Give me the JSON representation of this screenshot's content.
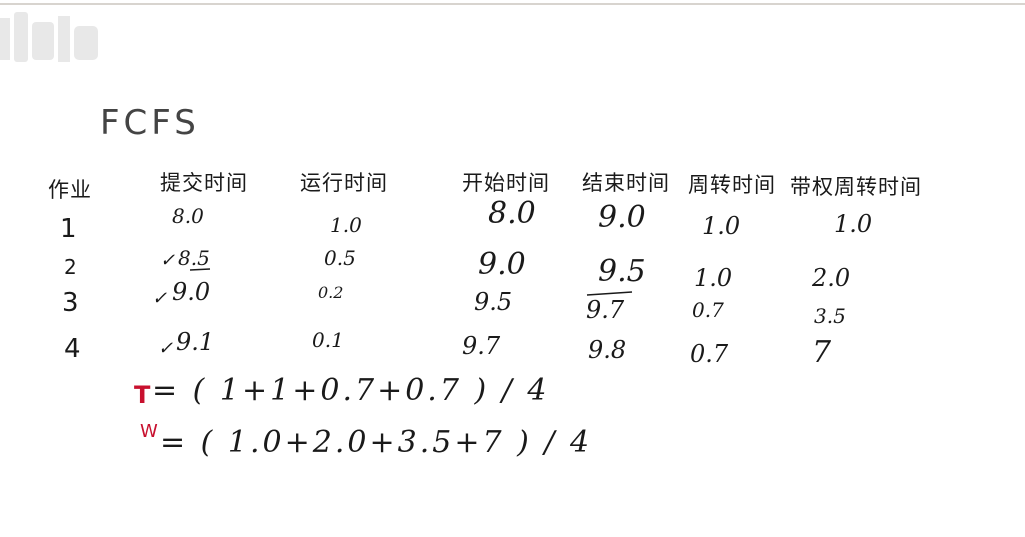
{
  "title": "FCFS",
  "headers": {
    "job": "作业",
    "submit": "提交时间",
    "run": "运行时间",
    "start": "开始时间",
    "end": "结束时间",
    "turnaround": "周转时间",
    "weighted": "带权周转时间"
  },
  "rows": [
    {
      "id": "1",
      "submit": "8.0",
      "run": "1.0",
      "start": "8.0",
      "end": "9.0",
      "turnaround": "1.0",
      "weighted": "1.0"
    },
    {
      "id": "2",
      "submit": "8.5",
      "run": "0.5",
      "start": "9.0",
      "end": "9.5",
      "turnaround": "1.0",
      "weighted": "2.0"
    },
    {
      "id": "3",
      "submit": "9.0",
      "run": "0.2",
      "start": "9.5",
      "end": "9.7",
      "turnaround": "0.7",
      "weighted": "3.5"
    },
    {
      "id": "4",
      "submit": "9.1",
      "run": "0.1",
      "start": "9.7",
      "end": "9.8",
      "turnaround": "0.7",
      "weighted": "7"
    }
  ],
  "formulas": {
    "t_label": "T",
    "t_expr": "= ( 1+1+0.7+0.7 ) / 4",
    "w_label": "W",
    "w_expr": "= ( 1.0+2.0+3.5+7 ) / 4"
  },
  "colors": {
    "ink": "#1a1a1a",
    "accent": "#c8102e"
  }
}
